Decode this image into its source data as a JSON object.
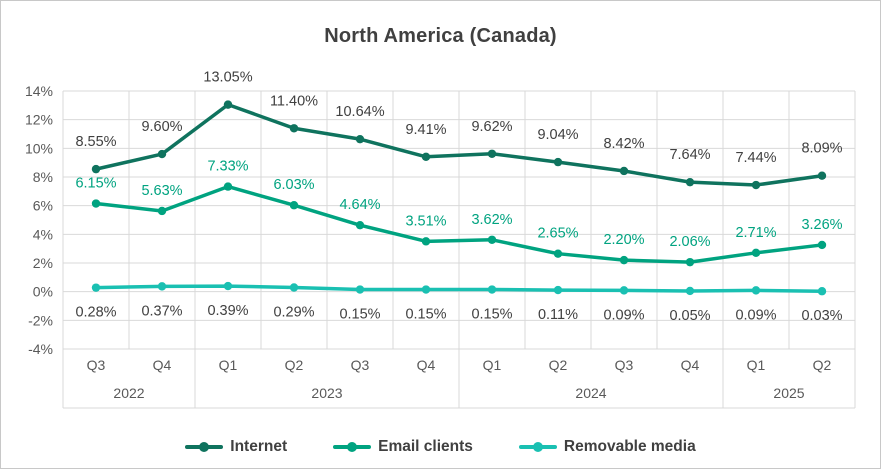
{
  "title": "North America (Canada)",
  "chart_data": {
    "type": "line",
    "title": "North America (Canada)",
    "categories": [
      "Q3",
      "Q4",
      "Q1",
      "Q2",
      "Q3",
      "Q4",
      "Q1",
      "Q2",
      "Q3",
      "Q4",
      "Q1",
      "Q2"
    ],
    "category_groups": [
      {
        "label": "2022",
        "span": 2
      },
      {
        "label": "2023",
        "span": 4
      },
      {
        "label": "2024",
        "span": 4
      },
      {
        "label": "2025",
        "span": 2
      }
    ],
    "series": [
      {
        "name": "Internet",
        "color": "#0F735E",
        "label_color": "#404040",
        "label_position": "above",
        "values": [
          8.55,
          9.6,
          13.05,
          11.4,
          10.64,
          9.41,
          9.62,
          9.04,
          8.42,
          7.64,
          7.44,
          8.09
        ]
      },
      {
        "name": "Email clients",
        "color": "#00A380",
        "label_color": "#00A380",
        "label_position": "above",
        "values": [
          6.15,
          5.63,
          7.33,
          6.03,
          4.64,
          3.51,
          3.62,
          2.65,
          2.2,
          2.06,
          2.71,
          3.26
        ]
      },
      {
        "name": "Removable media",
        "color": "#1AC0B2",
        "label_color": "#404040",
        "label_position": "below",
        "values": [
          0.28,
          0.37,
          0.39,
          0.29,
          0.15,
          0.15,
          0.15,
          0.11,
          0.09,
          0.05,
          0.09,
          0.03
        ]
      }
    ],
    "y_axis": {
      "min": -4,
      "max": 14,
      "step": 2,
      "tick_labels": [
        "14%",
        "12%",
        "10%",
        "8%",
        "6%",
        "4%",
        "2%",
        "0%",
        "-2%",
        "-4%"
      ]
    },
    "data_label_format": "0.00%",
    "grid": true,
    "legend_position": "bottom"
  },
  "colors": {
    "grid": "#D9D9D9",
    "axis_text": "#595959",
    "title_text": "#404040",
    "border": "#C8C8C8",
    "background": "#FFFFFF"
  }
}
